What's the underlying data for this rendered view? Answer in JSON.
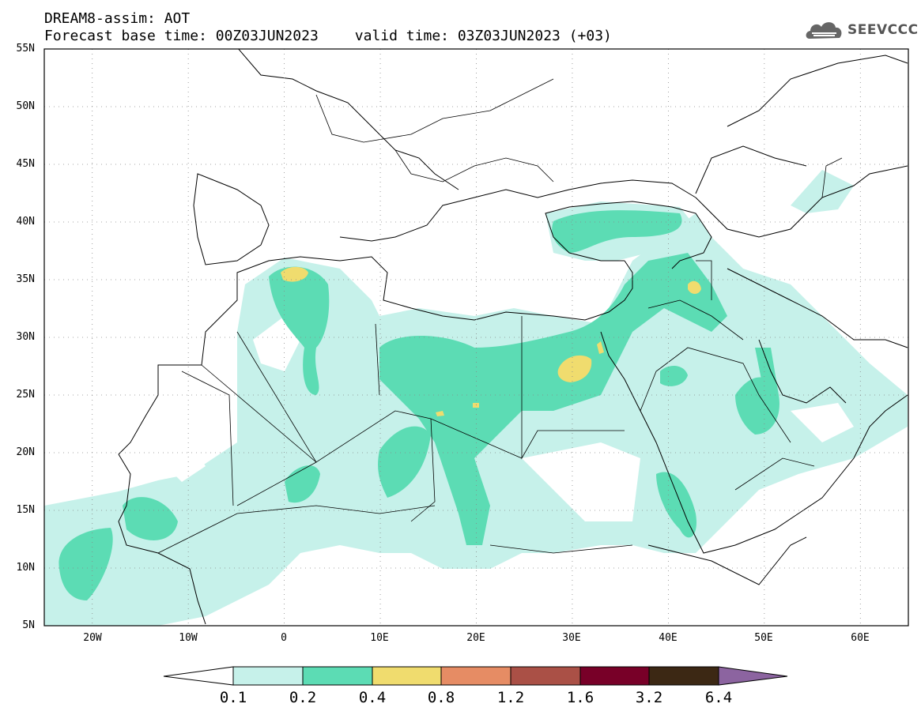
{
  "header": {
    "line1": "DREAM8-assim: AOT",
    "base_label": "Forecast base time: 00Z03JUN2023",
    "valid_label": "valid time: 03Z03JUN2023 (+03)"
  },
  "logo": {
    "text": "SEEVCCC",
    "icon": "cloud-icon"
  },
  "map": {
    "lon_range": [
      -25,
      65
    ],
    "lat_range": [
      5,
      55
    ],
    "lat_labels": [
      "55N",
      "50N",
      "45N",
      "40N",
      "35N",
      "30N",
      "25N",
      "20N",
      "15N",
      "10N",
      "5N"
    ],
    "lon_labels": [
      "20W",
      "10W",
      "0",
      "10E",
      "20E",
      "30E",
      "40E",
      "50E",
      "60E"
    ],
    "gridlines": "dotted"
  },
  "colorbar": {
    "colors": [
      "#ffffff",
      "#c6f1ea",
      "#5cdcb4",
      "#f0dc6e",
      "#e68c64",
      "#aa5046",
      "#780028",
      "#3c2814",
      "#8c64a0"
    ],
    "labels": [
      "0.1",
      "0.2",
      "0.4",
      "0.8",
      "1.2",
      "1.6",
      "3.2",
      "6.4"
    ]
  }
}
